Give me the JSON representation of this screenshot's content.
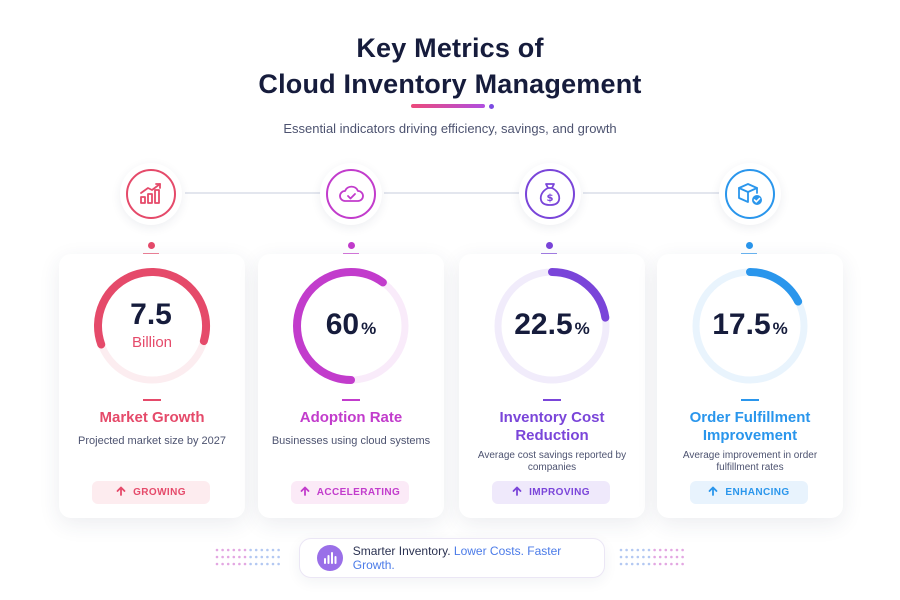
{
  "header": {
    "title_line1": "Key Metrics of",
    "title_line2": "Cloud Inventory Management",
    "subtitle": "Essential indicators driving efficiency, savings, and growth"
  },
  "metrics": [
    {
      "icon": "trending-chart-icon",
      "value": "7.5",
      "unit": "Billion",
      "percent_sign": "",
      "title": "Market Growth",
      "description": "Projected market size by 2027",
      "badge": "GROWING",
      "color": "#e54a6a",
      "badge_bg": "#fdecef",
      "ring_fill": 0.6
    },
    {
      "icon": "cloud-check-icon",
      "value": "60",
      "unit": "",
      "percent_sign": "%",
      "title": "Adoption Rate",
      "description": "Businesses using cloud systems",
      "badge": "ACCELERATING",
      "color": "#c23ccc",
      "badge_bg": "#fbeaf7",
      "ring_fill": 0.6
    },
    {
      "icon": "money-bag-icon",
      "value": "22.5",
      "unit": "",
      "percent_sign": "%",
      "title": "Inventory Cost Reduction",
      "description": "Average cost savings reported by companies",
      "badge": "IMPROVING",
      "color": "#7a45d9",
      "badge_bg": "#efe9fb",
      "ring_fill": 0.225
    },
    {
      "icon": "package-check-icon",
      "value": "17.5",
      "unit": "",
      "percent_sign": "%",
      "title": "Order Fulfillment Improvement",
      "description": "Average improvement in order fulfillment rates",
      "badge": "ENHANCING",
      "color": "#2a96ec",
      "badge_bg": "#e8f3fd",
      "ring_fill": 0.175
    }
  ],
  "footer": {
    "text_plain": "Smarter Inventory.",
    "text_accent": "Lower Costs. Faster Growth."
  }
}
